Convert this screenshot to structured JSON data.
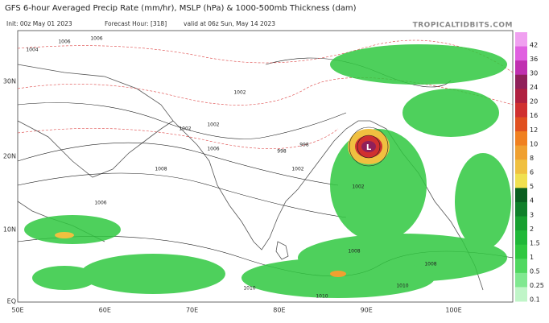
{
  "header": {
    "title": "GFS 6-hour Averaged Precip Rate (mm/hr), MSLP (hPa) & 1000-500mb Thickness (dam)",
    "init": "Init: 00z May 01 2023",
    "forecast_hour": "Forecast Hour: [318]",
    "valid": "valid at 06z Sun, May 14 2023",
    "source": "TROPICALTIDBITS.COM"
  },
  "map": {
    "lat_labels": [
      "30N",
      "20N",
      "10N",
      "EQ"
    ],
    "lon_labels": [
      "50E",
      "60E",
      "70E",
      "80E",
      "90E",
      "100E"
    ],
    "low_label": "L",
    "isobar_labels": [
      "1006",
      "1004",
      "1006",
      "1002",
      "1006",
      "1002",
      "998",
      "1002",
      "1006",
      "1008",
      "1008",
      "1010",
      "1010",
      "1010",
      "1008",
      "1002",
      "998",
      "1002"
    ]
  },
  "colorbar": {
    "labels": [
      "42",
      "36",
      "30",
      "24",
      "20",
      "16",
      "12",
      "10",
      "8",
      "6",
      "5",
      "4",
      "3",
      "2",
      "1.5",
      "1",
      "0.5",
      "0.25",
      "0.1"
    ],
    "colors": [
      "#f0a0f0",
      "#e060e0",
      "#c030b0",
      "#90205a",
      "#b02040",
      "#d03030",
      "#e05020",
      "#f08020",
      "#f0a030",
      "#f0c040",
      "#f0e050",
      "#0a6020",
      "#10802a",
      "#18a030",
      "#20b838",
      "#30c840",
      "#50d860",
      "#80e890",
      "#c0f5c8"
    ]
  }
}
